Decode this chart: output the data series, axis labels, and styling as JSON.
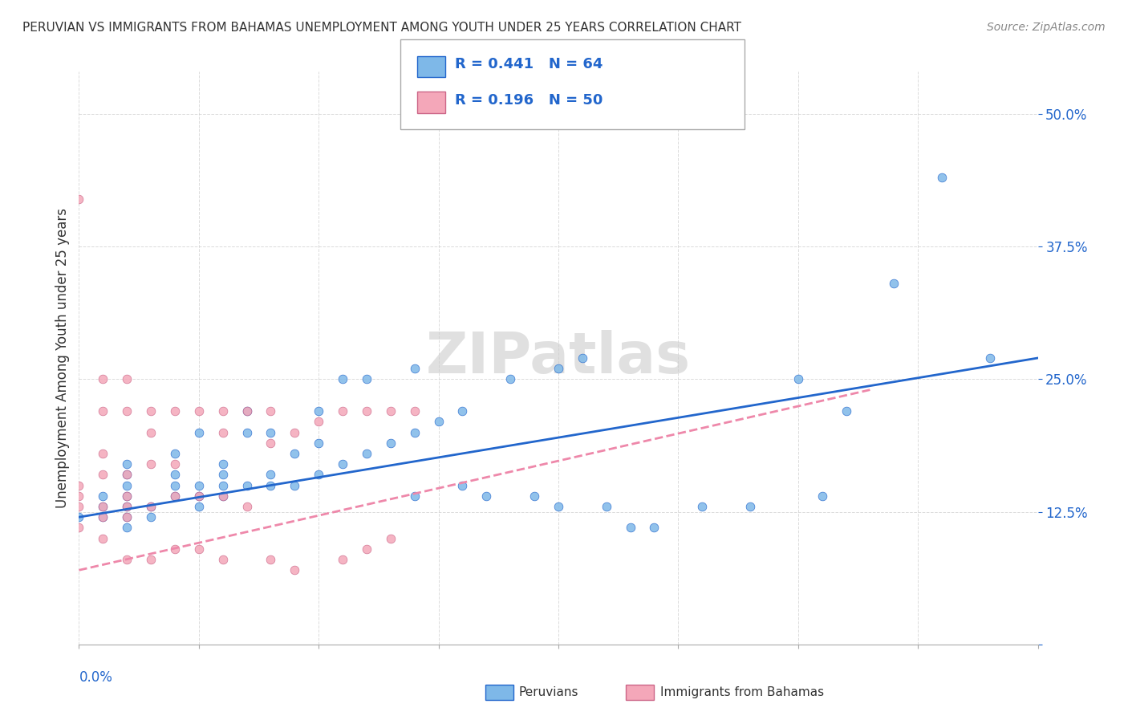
{
  "title": "PERUVIAN VS IMMIGRANTS FROM BAHAMAS UNEMPLOYMENT AMONG YOUTH UNDER 25 YEARS CORRELATION CHART",
  "source": "Source: ZipAtlas.com",
  "ylabel": "Unemployment Among Youth under 25 years",
  "yticks": [
    0.0,
    0.125,
    0.25,
    0.375,
    0.5
  ],
  "ytick_labels": [
    "",
    "12.5%",
    "25.0%",
    "37.5%",
    "50.0%"
  ],
  "xlim": [
    0.0,
    0.2
  ],
  "ylim": [
    0.0,
    0.54
  ],
  "watermark": "ZIPatlas",
  "legend_r1": "R = 0.441",
  "legend_n1": "N = 64",
  "legend_r2": "R = 0.196",
  "legend_n2": "N = 50",
  "peruvian_color": "#7EB8E8",
  "bahamas_color": "#F4A7B9",
  "peruvian_line_color": "#2266CC",
  "bahamas_line_color": "#EE88AA",
  "peruvian_scatter": [
    [
      0.0,
      0.12
    ],
    [
      0.01,
      0.14
    ],
    [
      0.01,
      0.13
    ],
    [
      0.01,
      0.12
    ],
    [
      0.01,
      0.11
    ],
    [
      0.01,
      0.16
    ],
    [
      0.01,
      0.15
    ],
    [
      0.01,
      0.17
    ],
    [
      0.015,
      0.12
    ],
    [
      0.015,
      0.13
    ],
    [
      0.02,
      0.14
    ],
    [
      0.02,
      0.15
    ],
    [
      0.02,
      0.16
    ],
    [
      0.02,
      0.18
    ],
    [
      0.025,
      0.13
    ],
    [
      0.025,
      0.14
    ],
    [
      0.025,
      0.15
    ],
    [
      0.025,
      0.2
    ],
    [
      0.03,
      0.14
    ],
    [
      0.03,
      0.15
    ],
    [
      0.03,
      0.16
    ],
    [
      0.03,
      0.17
    ],
    [
      0.035,
      0.15
    ],
    [
      0.035,
      0.2
    ],
    [
      0.035,
      0.22
    ],
    [
      0.04,
      0.15
    ],
    [
      0.04,
      0.16
    ],
    [
      0.04,
      0.2
    ],
    [
      0.045,
      0.15
    ],
    [
      0.045,
      0.18
    ],
    [
      0.05,
      0.16
    ],
    [
      0.05,
      0.19
    ],
    [
      0.05,
      0.22
    ],
    [
      0.055,
      0.17
    ],
    [
      0.055,
      0.25
    ],
    [
      0.06,
      0.18
    ],
    [
      0.06,
      0.25
    ],
    [
      0.065,
      0.19
    ],
    [
      0.07,
      0.14
    ],
    [
      0.07,
      0.2
    ],
    [
      0.07,
      0.26
    ],
    [
      0.075,
      0.21
    ],
    [
      0.08,
      0.15
    ],
    [
      0.08,
      0.22
    ],
    [
      0.085,
      0.14
    ],
    [
      0.09,
      0.25
    ],
    [
      0.095,
      0.14
    ],
    [
      0.1,
      0.13
    ],
    [
      0.1,
      0.26
    ],
    [
      0.105,
      0.27
    ],
    [
      0.11,
      0.13
    ],
    [
      0.115,
      0.11
    ],
    [
      0.12,
      0.11
    ],
    [
      0.13,
      0.13
    ],
    [
      0.14,
      0.13
    ],
    [
      0.15,
      0.25
    ],
    [
      0.155,
      0.14
    ],
    [
      0.16,
      0.22
    ],
    [
      0.17,
      0.34
    ],
    [
      0.18,
      0.44
    ],
    [
      0.19,
      0.27
    ],
    [
      0.005,
      0.12
    ],
    [
      0.005,
      0.13
    ],
    [
      0.005,
      0.14
    ]
  ],
  "bahamas_scatter": [
    [
      0.0,
      0.42
    ],
    [
      0.0,
      0.13
    ],
    [
      0.0,
      0.14
    ],
    [
      0.0,
      0.15
    ],
    [
      0.005,
      0.12
    ],
    [
      0.005,
      0.13
    ],
    [
      0.005,
      0.16
    ],
    [
      0.005,
      0.18
    ],
    [
      0.005,
      0.22
    ],
    [
      0.005,
      0.25
    ],
    [
      0.01,
      0.12
    ],
    [
      0.01,
      0.13
    ],
    [
      0.01,
      0.14
    ],
    [
      0.01,
      0.16
    ],
    [
      0.01,
      0.22
    ],
    [
      0.01,
      0.25
    ],
    [
      0.015,
      0.13
    ],
    [
      0.015,
      0.17
    ],
    [
      0.015,
      0.2
    ],
    [
      0.015,
      0.22
    ],
    [
      0.02,
      0.14
    ],
    [
      0.02,
      0.17
    ],
    [
      0.02,
      0.22
    ],
    [
      0.025,
      0.14
    ],
    [
      0.025,
      0.22
    ],
    [
      0.03,
      0.14
    ],
    [
      0.03,
      0.2
    ],
    [
      0.03,
      0.22
    ],
    [
      0.035,
      0.13
    ],
    [
      0.035,
      0.22
    ],
    [
      0.04,
      0.19
    ],
    [
      0.04,
      0.22
    ],
    [
      0.045,
      0.2
    ],
    [
      0.05,
      0.21
    ],
    [
      0.055,
      0.22
    ],
    [
      0.06,
      0.22
    ],
    [
      0.065,
      0.22
    ],
    [
      0.07,
      0.22
    ],
    [
      0.02,
      0.09
    ],
    [
      0.025,
      0.09
    ],
    [
      0.03,
      0.08
    ],
    [
      0.04,
      0.08
    ],
    [
      0.045,
      0.07
    ],
    [
      0.055,
      0.08
    ],
    [
      0.06,
      0.09
    ],
    [
      0.065,
      0.1
    ],
    [
      0.0,
      0.11
    ],
    [
      0.005,
      0.1
    ],
    [
      0.01,
      0.08
    ],
    [
      0.015,
      0.08
    ]
  ],
  "peruvian_trend_x": [
    0.0,
    0.2
  ],
  "peruvian_trend_y": [
    0.12,
    0.27
  ],
  "bahamas_trend_x": [
    0.0,
    0.165
  ],
  "bahamas_trend_y": [
    0.07,
    0.24
  ]
}
